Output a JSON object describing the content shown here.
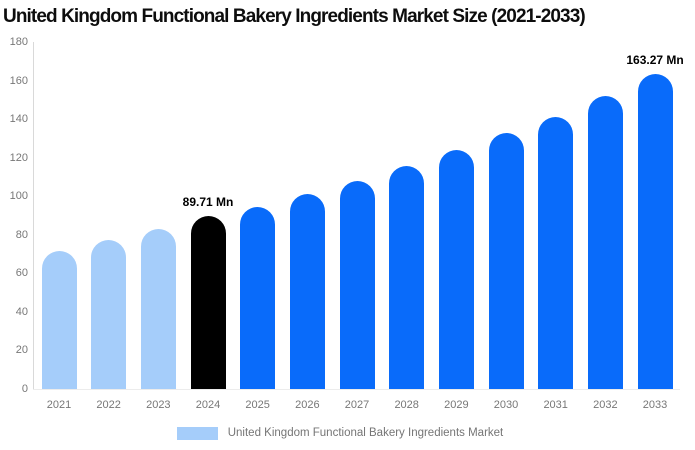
{
  "chart_data": {
    "type": "bar",
    "title": "United Kingdom Functional Bakery Ingredients Market Size (2021-2033)",
    "categories": [
      "2021",
      "2022",
      "2023",
      "2024",
      "2025",
      "2026",
      "2027",
      "2028",
      "2029",
      "2030",
      "2031",
      "2032",
      "2033"
    ],
    "values": [
      71.8,
      77.3,
      82.9,
      89.71,
      94.3,
      101.2,
      107.9,
      115.6,
      124.1,
      133.0,
      141.2,
      151.8,
      163.27
    ],
    "unit": "Mn",
    "ylim": [
      0,
      180
    ],
    "ytick_step": 20,
    "yticks": [
      0,
      20,
      40,
      60,
      80,
      100,
      120,
      140,
      160,
      180
    ],
    "grid": false,
    "bar_colors": [
      "#a5cdfa",
      "#a5cdfa",
      "#a5cdfa",
      "#000000",
      "#096bfa",
      "#096bfa",
      "#096bfa",
      "#096bfa",
      "#096bfa",
      "#096bfa",
      "#096bfa",
      "#096bfa",
      "#096bfa"
    ],
    "data_labels": [
      {
        "index": 3,
        "text": "89.71 Mn"
      },
      {
        "index": 12,
        "text": "163.27 Mn"
      }
    ],
    "legend": {
      "label": "United Kingdom Functional Bakery Ingredients Market",
      "position": "bottom",
      "swatch_color": "#a5cdfa"
    },
    "colors": {
      "light_blue": "#a5cdfa",
      "highlight_black": "#000000",
      "forecast_blue": "#096bfa",
      "axis_line": "#d9d9d9",
      "tick_text": "#777777"
    }
  }
}
